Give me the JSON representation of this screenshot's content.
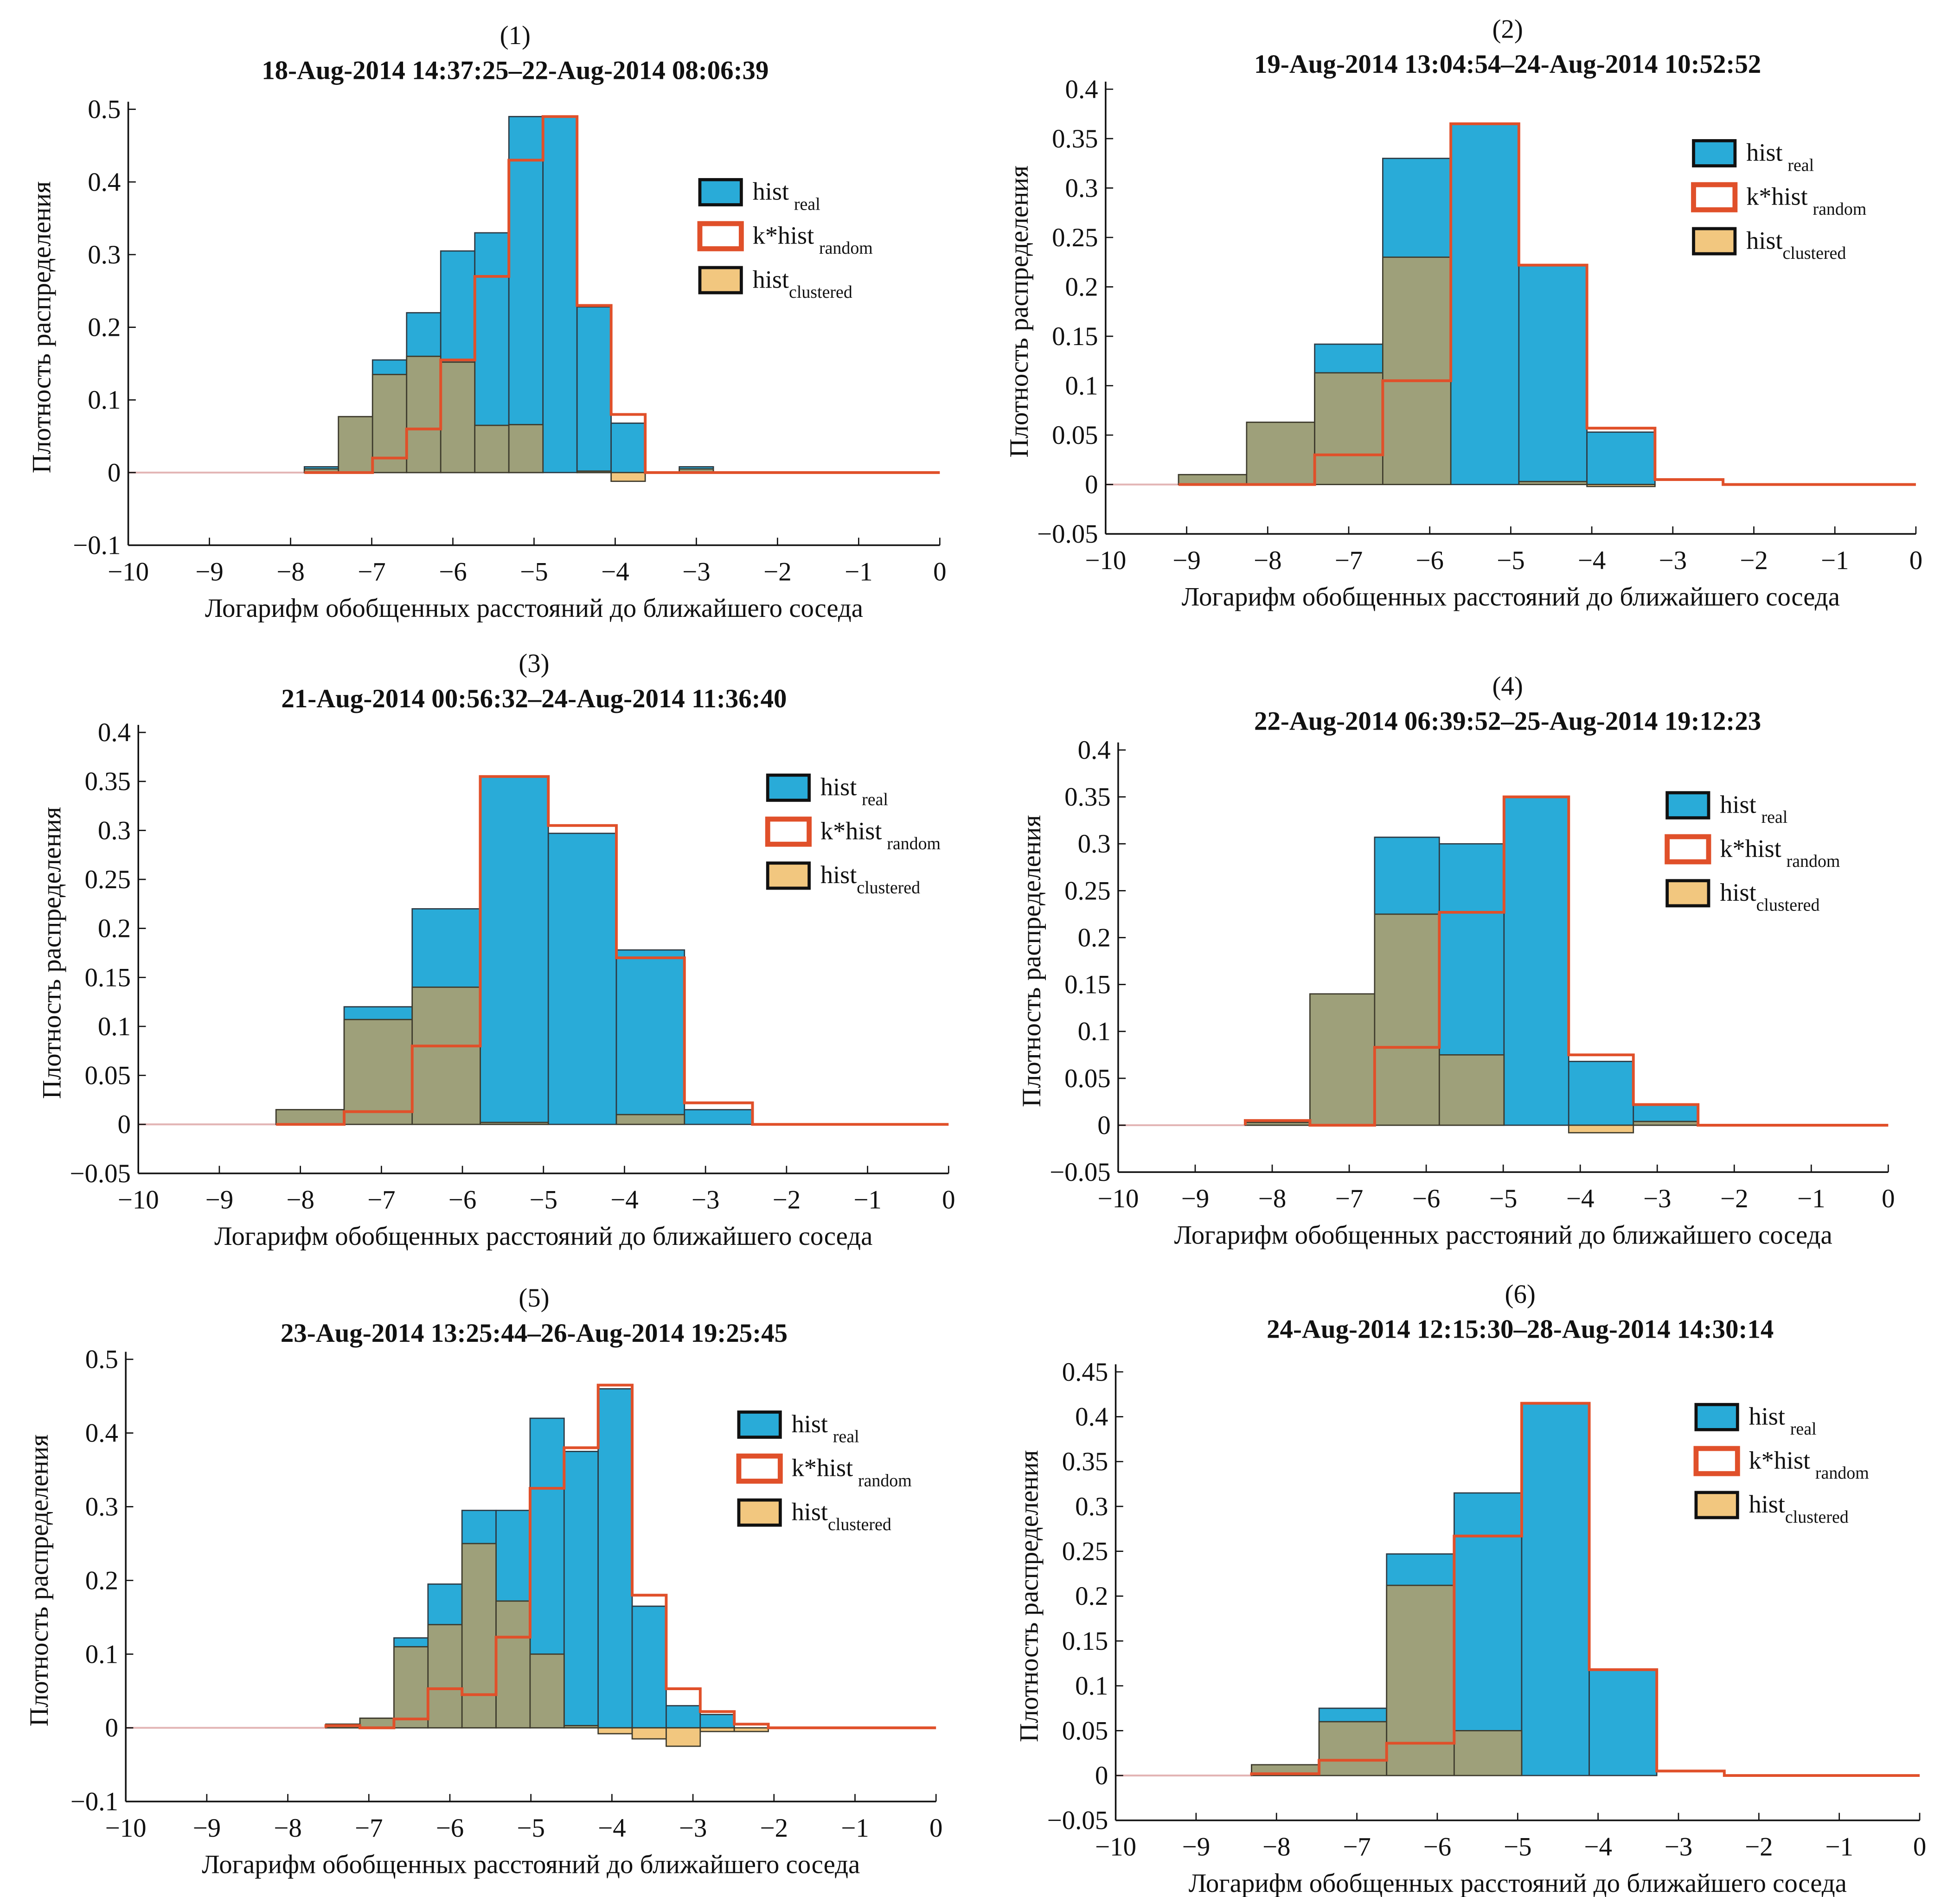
{
  "chart_data": [
    {
      "type": "bar",
      "label": "(1)",
      "title": "18-Aug-2014 14:37:25–22-Aug-2014 08:06:39",
      "xlabel": "Логарифм обобщенных расстояний до ближайшего соседа",
      "ylabel": "Плотность распределения",
      "xlim": [
        -10,
        0
      ],
      "ylim": [
        -0.1,
        0.5
      ],
      "yticks": [
        -0.1,
        0,
        0.1,
        0.2,
        0.3,
        0.4,
        0.5
      ],
      "xticks": [
        -10,
        -9,
        -8,
        -7,
        -6,
        -5,
        -4,
        -3,
        -2,
        -1,
        0
      ],
      "bin_start": -7.83,
      "bin_width": 0.42,
      "hist_real": [
        0.008,
        0.077,
        0.155,
        0.22,
        0.305,
        0.33,
        0.49,
        0.49,
        0.228,
        0.068,
        0,
        0.008
      ],
      "k_hist_random": [
        0,
        0,
        0.02,
        0.06,
        0.155,
        0.27,
        0.43,
        0.49,
        0.23,
        0.08,
        0,
        0
      ],
      "hist_clustered": [
        0.005,
        0.077,
        0.135,
        0.16,
        0.152,
        0.065,
        0.066,
        0,
        0.002,
        -0.012,
        0,
        0.005
      ]
    },
    {
      "type": "bar",
      "label": "(2)",
      "title": "19-Aug-2014 13:04:54–24-Aug-2014 10:52:52",
      "xlabel": "Логарифм обобщенных расстояний до ближайшего соседа",
      "ylabel": "Плотность распределения",
      "xlim": [
        -10,
        0
      ],
      "ylim": [
        -0.05,
        0.4
      ],
      "yticks": [
        -0.05,
        0,
        0.05,
        0.1,
        0.15,
        0.2,
        0.25,
        0.3,
        0.35,
        0.4
      ],
      "xticks": [
        -10,
        -9,
        -8,
        -7,
        -6,
        -5,
        -4,
        -3,
        -2,
        -1,
        0
      ],
      "bin_start": -9.1,
      "bin_width": 0.84,
      "hist_real": [
        0.01,
        0.063,
        0.142,
        0.33,
        0.365,
        0.222,
        0.053,
        0
      ],
      "k_hist_random": [
        0,
        0,
        0.03,
        0.105,
        0.365,
        0.222,
        0.057,
        0.005
      ],
      "hist_clustered": [
        0.01,
        0.063,
        0.113,
        0.23,
        0,
        0.003,
        -0.002,
        0
      ]
    },
    {
      "type": "bar",
      "label": "(3)",
      "title": "21-Aug-2014 00:56:32–24-Aug-2014 11:36:40",
      "xlabel": "Логарифм обобщенных расстояний до ближайшего соседа",
      "ylabel": "Плотность распределения",
      "xlim": [
        -10,
        0
      ],
      "ylim": [
        -0.05,
        0.4
      ],
      "yticks": [
        -0.05,
        0,
        0.05,
        0.1,
        0.15,
        0.2,
        0.25,
        0.3,
        0.35,
        0.4
      ],
      "xticks": [
        -10,
        -9,
        -8,
        -7,
        -6,
        -5,
        -4,
        -3,
        -2,
        -1,
        0
      ],
      "bin_start": -8.3,
      "bin_width": 0.84,
      "hist_real": [
        0.015,
        0.12,
        0.22,
        0.355,
        0.297,
        0.178,
        0.015
      ],
      "k_hist_random": [
        0,
        0.013,
        0.08,
        0.355,
        0.305,
        0.17,
        0.022
      ],
      "hist_clustered": [
        0.015,
        0.107,
        0.14,
        0.002,
        0,
        0.01,
        0
      ]
    },
    {
      "type": "bar",
      "label": "(4)",
      "title": "22-Aug-2014 06:39:52–25-Aug-2014 19:12:23",
      "xlabel": "Логарифм обобщенных расстояний до ближайшего соседа",
      "ylabel": "Плотность распределения",
      "xlim": [
        -10,
        0
      ],
      "ylim": [
        -0.05,
        0.4
      ],
      "yticks": [
        -0.05,
        0,
        0.05,
        0.1,
        0.15,
        0.2,
        0.25,
        0.3,
        0.35,
        0.4
      ],
      "xticks": [
        -10,
        -9,
        -8,
        -7,
        -6,
        -5,
        -4,
        -3,
        -2,
        -1,
        0
      ],
      "bin_start": -8.35,
      "bin_width": 0.84,
      "hist_real": [
        0.005,
        0.14,
        0.307,
        0.3,
        0.35,
        0.068,
        0.022
      ],
      "k_hist_random": [
        0.005,
        0,
        0.083,
        0.227,
        0.35,
        0.075,
        0.022
      ],
      "hist_clustered": [
        0.003,
        0.14,
        0.225,
        0.075,
        0,
        -0.008,
        0.004
      ]
    },
    {
      "type": "bar",
      "label": "(5)",
      "title": "23-Aug-2014 13:25:44–26-Aug-2014 19:25:45",
      "xlabel": "Логарифм обобщенных расстояний до ближайшего соседа",
      "ylabel": "Плотность распределения",
      "xlim": [
        -10,
        0
      ],
      "ylim": [
        -0.1,
        0.5
      ],
      "yticks": [
        -0.1,
        0,
        0.1,
        0.2,
        0.3,
        0.4,
        0.5
      ],
      "xticks": [
        -10,
        -9,
        -8,
        -7,
        -6,
        -5,
        -4,
        -3,
        -2,
        -1,
        0
      ],
      "bin_start": -7.53,
      "bin_width": 0.42,
      "hist_real": [
        0.005,
        0.013,
        0.122,
        0.195,
        0.295,
        0.295,
        0.42,
        0.375,
        0.46,
        0.165,
        0.03,
        0.018,
        0
      ],
      "k_hist_random": [
        0.003,
        0,
        0.012,
        0.053,
        0.045,
        0.123,
        0.325,
        0.38,
        0.465,
        0.18,
        0.053,
        0.022,
        0.005
      ],
      "hist_clustered": [
        0.005,
        0.013,
        0.11,
        0.14,
        0.25,
        0.172,
        0.1,
        0.003,
        -0.008,
        -0.015,
        -0.025,
        -0.005,
        -0.005
      ]
    },
    {
      "type": "bar",
      "label": "(6)",
      "title": "24-Aug-2014 12:15:30–28-Aug-2014 14:30:14",
      "xlabel": "Логарифм обобщенных расстояний до ближайшего соседа",
      "ylabel": "Плотность распределения",
      "xlim": [
        -10,
        0
      ],
      "ylim": [
        -0.05,
        0.45
      ],
      "yticks": [
        -0.05,
        0,
        0.05,
        0.1,
        0.15,
        0.2,
        0.25,
        0.3,
        0.35,
        0.4,
        0.45
      ],
      "xticks": [
        -10,
        -9,
        -8,
        -7,
        -6,
        -5,
        -4,
        -3,
        -2,
        -1,
        0
      ],
      "bin_start": -8.31,
      "bin_width": 0.84,
      "hist_real": [
        0.012,
        0.075,
        0.247,
        0.315,
        0.415,
        0.118,
        0
      ],
      "k_hist_random": [
        0.002,
        0.017,
        0.036,
        0.267,
        0.415,
        0.118,
        0.005
      ],
      "hist_clustered": [
        0.012,
        0.06,
        0.212,
        0.05,
        0,
        0,
        0
      ]
    }
  ],
  "legend": [
    {
      "main": "hist",
      "sub": "real",
      "color": "#29abd8"
    },
    {
      "main": "k*hist",
      "sub": "random",
      "color": "#e0502a"
    },
    {
      "main": "hist",
      "sub": "clustered",
      "color": "#f2c77f"
    }
  ],
  "colors": {
    "real": "#29abd8",
    "random": "#e0502a",
    "clustered_overlap": "#9ea07a",
    "clustered": "#f2c77f"
  }
}
